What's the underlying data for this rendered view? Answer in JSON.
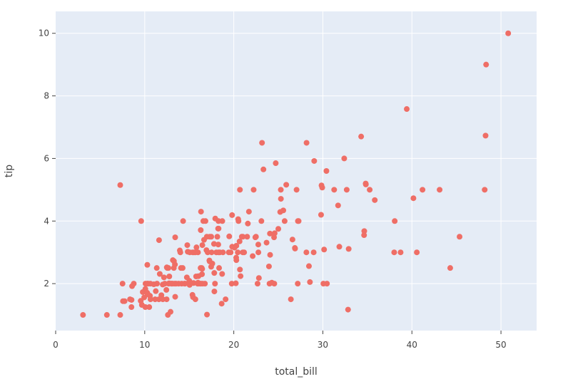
{
  "chart_data": {
    "type": "scatter",
    "title": "",
    "xlabel": "total_bill",
    "ylabel": "tip",
    "xlim": [
      0,
      54
    ],
    "ylim": [
      0.5,
      10.7
    ],
    "x_ticks": [
      0,
      10,
      20,
      30,
      40,
      50
    ],
    "y_ticks": [
      2,
      4,
      6,
      8,
      10
    ],
    "grid": true,
    "legend": "none",
    "colors": {
      "background": "#e5ecf6",
      "grid": "#ffffff",
      "marker": "#ef6e66"
    },
    "series": [
      {
        "points": [
          [
            3.07,
            1.0
          ],
          [
            5.75,
            1.0
          ],
          [
            7.25,
            1.0
          ],
          [
            7.25,
            5.15
          ],
          [
            7.51,
            2.0
          ],
          [
            7.56,
            1.44
          ],
          [
            7.74,
            1.44
          ],
          [
            8.35,
            1.5
          ],
          [
            8.51,
            1.25
          ],
          [
            8.52,
            1.48
          ],
          [
            8.58,
            1.92
          ],
          [
            8.77,
            2.0
          ],
          [
            9.55,
            1.45
          ],
          [
            9.6,
            4.0
          ],
          [
            9.68,
            1.32
          ],
          [
            9.78,
            1.73
          ],
          [
            9.94,
            1.56
          ],
          [
            10.07,
            1.83
          ],
          [
            10.07,
            1.25
          ],
          [
            10.09,
            2.0
          ],
          [
            10.27,
            1.71
          ],
          [
            10.29,
            2.6
          ],
          [
            10.33,
            1.67
          ],
          [
            10.33,
            2.0
          ],
          [
            10.34,
            1.66
          ],
          [
            10.34,
            2.0
          ],
          [
            10.51,
            1.25
          ],
          [
            10.59,
            1.61
          ],
          [
            10.63,
            2.0
          ],
          [
            10.65,
            1.5
          ],
          [
            11.02,
            1.98
          ],
          [
            11.17,
            1.5
          ],
          [
            11.24,
            1.76
          ],
          [
            11.35,
            2.5
          ],
          [
            11.38,
            2.0
          ],
          [
            11.59,
            1.5
          ],
          [
            11.61,
            3.39
          ],
          [
            11.69,
            2.31
          ],
          [
            11.87,
            1.63
          ],
          [
            12.02,
            1.97
          ],
          [
            12.03,
            1.5
          ],
          [
            12.16,
            2.2
          ],
          [
            12.26,
            2.0
          ],
          [
            12.43,
            1.8
          ],
          [
            12.46,
            1.5
          ],
          [
            12.48,
            2.52
          ],
          [
            12.54,
            2.5
          ],
          [
            12.6,
            1.0
          ],
          [
            12.66,
            2.5
          ],
          [
            12.69,
            2.0
          ],
          [
            12.74,
            2.01
          ],
          [
            12.76,
            2.23
          ],
          [
            12.9,
            1.1
          ],
          [
            13.0,
            2.0
          ],
          [
            13.03,
            2.0
          ],
          [
            13.13,
            2.0
          ],
          [
            13.16,
            2.75
          ],
          [
            13.27,
            2.5
          ],
          [
            13.28,
            2.72
          ],
          [
            13.37,
            2.0
          ],
          [
            13.39,
            2.61
          ],
          [
            13.42,
            3.48
          ],
          [
            13.42,
            1.58
          ],
          [
            13.51,
            2.0
          ],
          [
            13.81,
            2.0
          ],
          [
            13.94,
            3.06
          ],
          [
            14.0,
            3.0
          ],
          [
            14.07,
            2.5
          ],
          [
            14.15,
            2.0
          ],
          [
            14.26,
            2.5
          ],
          [
            14.31,
            4.0
          ],
          [
            14.48,
            2.0
          ],
          [
            14.52,
            2.0
          ],
          [
            14.73,
            2.2
          ],
          [
            14.78,
            3.23
          ],
          [
            14.83,
            3.02
          ],
          [
            15.01,
            2.09
          ],
          [
            15.04,
            1.96
          ],
          [
            15.06,
            3.0
          ],
          [
            15.36,
            1.64
          ],
          [
            15.38,
            3.0
          ],
          [
            15.42,
            1.57
          ],
          [
            15.48,
            2.02
          ],
          [
            15.53,
            3.0
          ],
          [
            15.69,
            1.5
          ],
          [
            15.69,
            3.0
          ],
          [
            15.77,
            2.23
          ],
          [
            15.81,
            3.16
          ],
          [
            15.95,
            2.0
          ],
          [
            15.98,
            2.03
          ],
          [
            15.98,
            3.0
          ],
          [
            16.0,
            2.0
          ],
          [
            16.04,
            2.24
          ],
          [
            16.21,
            2.0
          ],
          [
            16.27,
            2.5
          ],
          [
            16.29,
            3.71
          ],
          [
            16.31,
            2.0
          ],
          [
            16.32,
            4.3
          ],
          [
            16.4,
            2.5
          ],
          [
            16.43,
            2.3
          ],
          [
            16.45,
            2.47
          ],
          [
            16.47,
            3.23
          ],
          [
            16.49,
            2.0
          ],
          [
            16.58,
            4.0
          ],
          [
            16.66,
            3.4
          ],
          [
            16.76,
            2.0
          ],
          [
            16.82,
            4.0
          ],
          [
            16.93,
            3.07
          ],
          [
            16.97,
            3.5
          ],
          [
            16.99,
            1.01
          ],
          [
            17.07,
            3.0
          ],
          [
            17.26,
            2.74
          ],
          [
            17.29,
            2.71
          ],
          [
            17.31,
            3.5
          ],
          [
            17.46,
            2.54
          ],
          [
            17.47,
            3.5
          ],
          [
            17.51,
            3.0
          ],
          [
            17.59,
            2.64
          ],
          [
            17.78,
            3.27
          ],
          [
            17.81,
            2.34
          ],
          [
            17.82,
            1.75
          ],
          [
            17.89,
            2.0
          ],
          [
            17.92,
            4.08
          ],
          [
            18.04,
            3.0
          ],
          [
            18.15,
            3.5
          ],
          [
            18.24,
            3.76
          ],
          [
            18.26,
            3.25
          ],
          [
            18.28,
            4.0
          ],
          [
            18.29,
            3.0
          ],
          [
            18.29,
            3.76
          ],
          [
            18.35,
            2.5
          ],
          [
            18.43,
            3.0
          ],
          [
            18.64,
            1.36
          ],
          [
            18.69,
            2.31
          ],
          [
            18.71,
            4.0
          ],
          [
            18.78,
            3.0
          ],
          [
            19.08,
            1.5
          ],
          [
            19.44,
            3.0
          ],
          [
            19.49,
            3.51
          ],
          [
            19.65,
            3.0
          ],
          [
            19.77,
            2.0
          ],
          [
            19.81,
            4.19
          ],
          [
            19.82,
            3.18
          ],
          [
            20.08,
            3.15
          ],
          [
            20.23,
            2.01
          ],
          [
            20.27,
            2.83
          ],
          [
            20.29,
            2.75
          ],
          [
            20.29,
            3.21
          ],
          [
            20.45,
            3.0
          ],
          [
            20.49,
            4.06
          ],
          [
            20.53,
            4.0
          ],
          [
            20.65,
            3.35
          ],
          [
            20.69,
            2.45
          ],
          [
            20.69,
            5.0
          ],
          [
            20.76,
            2.24
          ],
          [
            20.9,
            3.5
          ],
          [
            21.01,
            3.5
          ],
          [
            21.01,
            3.0
          ],
          [
            21.16,
            3.0
          ],
          [
            21.5,
            3.5
          ],
          [
            21.58,
            3.92
          ],
          [
            21.7,
            4.3
          ],
          [
            22.12,
            2.88
          ],
          [
            22.23,
            5.0
          ],
          [
            22.42,
            3.48
          ],
          [
            22.49,
            3.5
          ],
          [
            22.67,
            2.0
          ],
          [
            22.75,
            3.25
          ],
          [
            22.76,
            3.0
          ],
          [
            22.82,
            2.18
          ],
          [
            23.1,
            4.0
          ],
          [
            23.17,
            6.5
          ],
          [
            23.33,
            5.65
          ],
          [
            23.68,
            3.31
          ],
          [
            23.95,
            2.55
          ],
          [
            24.01,
            2.0
          ],
          [
            24.06,
            3.6
          ],
          [
            24.08,
            2.92
          ],
          [
            24.27,
            2.03
          ],
          [
            24.52,
            3.48
          ],
          [
            24.55,
            2.0
          ],
          [
            24.59,
            3.61
          ],
          [
            24.71,
            5.85
          ],
          [
            25.0,
            3.75
          ],
          [
            25.21,
            4.29
          ],
          [
            25.28,
            5.0
          ],
          [
            25.29,
            4.71
          ],
          [
            25.56,
            4.34
          ],
          [
            25.71,
            4.0
          ],
          [
            25.89,
            5.16
          ],
          [
            26.41,
            1.5
          ],
          [
            26.59,
            3.41
          ],
          [
            26.86,
            3.14
          ],
          [
            26.88,
            3.12
          ],
          [
            27.05,
            5.0
          ],
          [
            27.18,
            2.0
          ],
          [
            27.2,
            4.0
          ],
          [
            27.28,
            4.0
          ],
          [
            28.15,
            3.0
          ],
          [
            28.17,
            6.5
          ],
          [
            28.44,
            2.56
          ],
          [
            28.55,
            2.05
          ],
          [
            28.97,
            3.0
          ],
          [
            29.03,
            5.92
          ],
          [
            29.8,
            4.2
          ],
          [
            29.85,
            5.14
          ],
          [
            29.93,
            5.07
          ],
          [
            30.06,
            2.0
          ],
          [
            30.14,
            3.09
          ],
          [
            30.4,
            5.6
          ],
          [
            30.46,
            2.0
          ],
          [
            31.27,
            5.0
          ],
          [
            31.71,
            4.5
          ],
          [
            31.85,
            3.18
          ],
          [
            32.4,
            6.0
          ],
          [
            32.68,
            5.0
          ],
          [
            32.83,
            1.17
          ],
          [
            32.9,
            3.11
          ],
          [
            34.3,
            6.7
          ],
          [
            34.63,
            3.55
          ],
          [
            34.65,
            3.68
          ],
          [
            34.81,
            5.2
          ],
          [
            34.83,
            5.17
          ],
          [
            35.26,
            5.0
          ],
          [
            35.83,
            4.67
          ],
          [
            38.01,
            3.0
          ],
          [
            38.07,
            4.0
          ],
          [
            38.73,
            3.0
          ],
          [
            39.42,
            7.58
          ],
          [
            40.17,
            4.73
          ],
          [
            40.55,
            3.0
          ],
          [
            41.19,
            5.0
          ],
          [
            43.11,
            5.0
          ],
          [
            44.3,
            2.5
          ],
          [
            45.35,
            3.5
          ],
          [
            48.17,
            5.0
          ],
          [
            48.27,
            6.73
          ],
          [
            48.33,
            9.0
          ],
          [
            50.81,
            10.0
          ]
        ]
      }
    ]
  }
}
